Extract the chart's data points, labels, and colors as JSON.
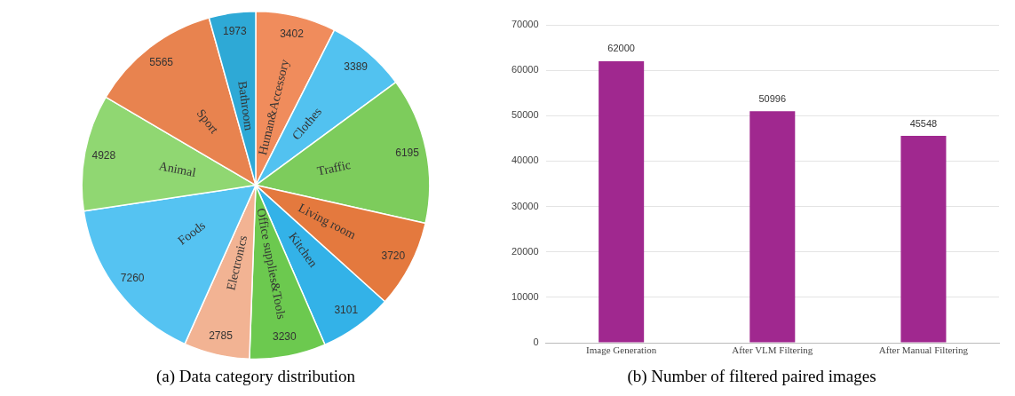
{
  "chart_data": [
    {
      "type": "pie",
      "title": "(a) Data category distribution",
      "categories": [
        "Human&Accessory",
        "Clothes",
        "Traffic",
        "Living room",
        "Kitchen",
        "Office supplies&Tools",
        "Electronics",
        "Foods",
        "Animal",
        "Sport",
        "Bathroom"
      ],
      "values": [
        3402,
        3389,
        6195,
        3720,
        3101,
        3230,
        2785,
        7260,
        4928,
        5565,
        1973
      ],
      "colors": [
        "#f08c5c",
        "#52c2f0",
        "#7dcc5c",
        "#e4793e",
        "#33b2e8",
        "#6cc94f",
        "#f2b393",
        "#55c3f2",
        "#90d772",
        "#e8834f",
        "#2ea9d6"
      ],
      "data_labels": true
    },
    {
      "type": "bar",
      "title": "(b) Number of filtered paired images",
      "categories": [
        "Image Generation",
        "After VLM Filtering",
        "After Manual Filtering"
      ],
      "values": [
        62000,
        50996,
        45548
      ],
      "color": "#a0288f",
      "ylim": [
        0,
        70000
      ],
      "yticks": [
        0,
        10000,
        20000,
        30000,
        40000,
        50000,
        60000,
        70000
      ],
      "grid": "y",
      "data_labels": true
    }
  ]
}
